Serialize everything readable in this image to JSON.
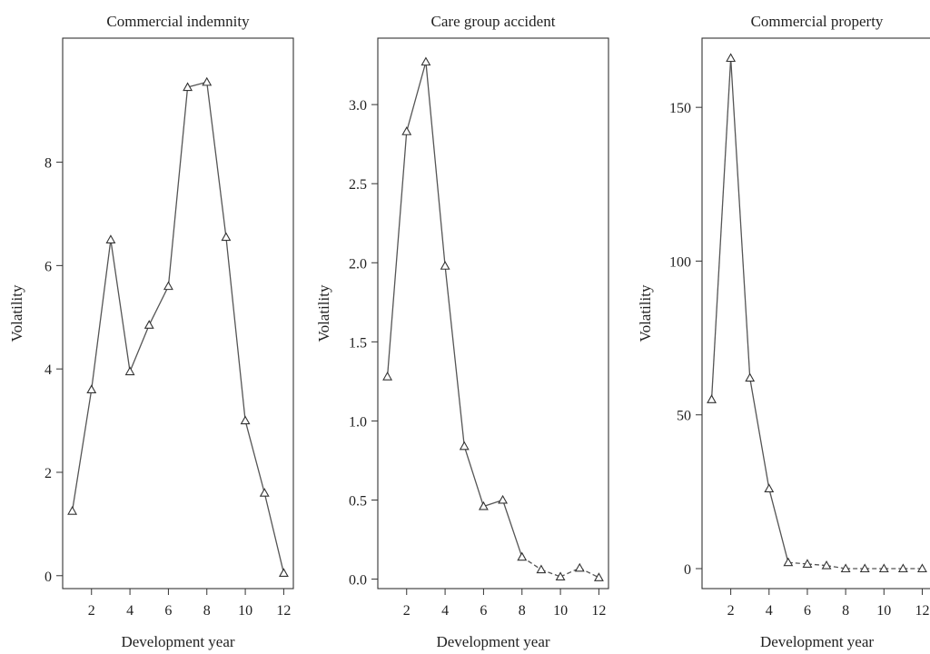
{
  "chart_data": [
    {
      "type": "line",
      "title": "Commercial indemnity",
      "xlabel": "Development year",
      "ylabel": "Volatility",
      "x": [
        1,
        2,
        3,
        4,
        5,
        6,
        7,
        8,
        9,
        10,
        11,
        12
      ],
      "series": [
        {
          "values": [
            1.25,
            3.6,
            6.5,
            3.95,
            4.85,
            5.6,
            9.45,
            9.55,
            6.55,
            3.0,
            1.6,
            0.05
          ]
        }
      ],
      "xlim": [
        0.5,
        12.5
      ],
      "ylim": [
        -0.25,
        10.4
      ],
      "xticks": [
        2,
        4,
        6,
        8,
        10,
        12
      ],
      "xtick_labels": [
        "2",
        "4",
        "6",
        "8",
        "10",
        "12"
      ],
      "yticks": [
        0,
        2,
        4,
        6,
        8
      ],
      "ytick_labels": [
        "0",
        "2",
        "4",
        "6",
        "8"
      ],
      "marker": "triangle",
      "grid": false
    },
    {
      "type": "line",
      "title": "Care group accident",
      "xlabel": "Development year",
      "ylabel": "Volatility",
      "x": [
        1,
        2,
        3,
        4,
        5,
        6,
        7,
        8,
        9,
        10,
        11,
        12
      ],
      "series": [
        {
          "values": [
            1.28,
            2.83,
            3.27,
            1.98,
            0.84,
            0.46,
            0.5,
            0.14,
            0.06,
            0.015,
            0.07,
            0.01
          ]
        }
      ],
      "xlim": [
        0.5,
        12.5
      ],
      "ylim": [
        -0.06,
        3.42
      ],
      "xticks": [
        2,
        4,
        6,
        8,
        10,
        12
      ],
      "xtick_labels": [
        "2",
        "4",
        "6",
        "8",
        "10",
        "12"
      ],
      "yticks": [
        0.0,
        0.5,
        1.0,
        1.5,
        2.0,
        2.5,
        3.0
      ],
      "ytick_labels": [
        "0.0",
        "0.5",
        "1.0",
        "1.5",
        "2.0",
        "2.5",
        "3.0"
      ],
      "marker": "triangle",
      "grid": false
    },
    {
      "type": "line",
      "title": "Commercial  property",
      "xlabel": "Development year",
      "ylabel": "Volatility",
      "x": [
        1,
        2,
        3,
        4,
        5,
        6,
        7,
        8,
        9,
        10,
        11,
        12
      ],
      "series": [
        {
          "values": [
            55,
            166,
            62,
            26,
            2,
            1.5,
            1,
            0,
            0,
            0,
            0,
            0
          ]
        }
      ],
      "xlim": [
        0.5,
        12.5
      ],
      "ylim": [
        -6.5,
        172.5
      ],
      "xticks": [
        2,
        4,
        6,
        8,
        10,
        12
      ],
      "xtick_labels": [
        "2",
        "4",
        "6",
        "8",
        "10",
        "12"
      ],
      "yticks": [
        0,
        50,
        100,
        150
      ],
      "ytick_labels": [
        "0",
        "50",
        "100",
        "150"
      ],
      "marker": "triangle",
      "grid": false
    }
  ]
}
